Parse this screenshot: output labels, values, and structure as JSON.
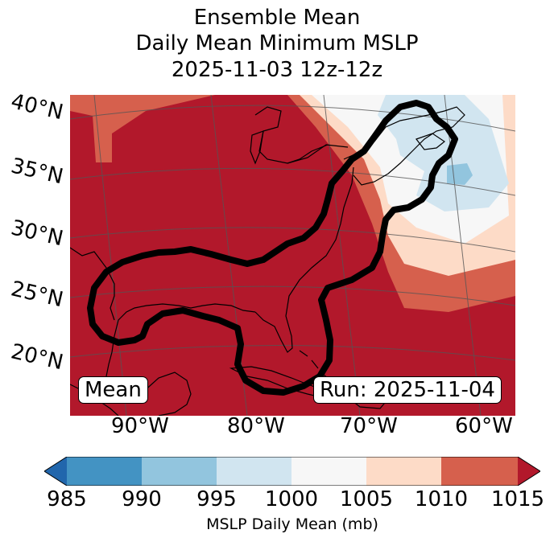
{
  "title": {
    "line1": "Ensemble Mean",
    "line2": "Daily Mean Minimum MSLP",
    "line3": "2025-11-03 12z-12z"
  },
  "axes": {
    "lat_labels": [
      "40°N",
      "35°N",
      "30°N",
      "25°N",
      "20°N"
    ],
    "lon_labels": [
      "90°W",
      "80°W",
      "70°W",
      "60°W"
    ]
  },
  "annotations": {
    "mean_label": "Mean",
    "run_label": "Run: 2025-11-04"
  },
  "colorbar": {
    "label": "MSLP Daily Mean (mb)",
    "ticks": [
      "985",
      "990",
      "995",
      "1000",
      "1005",
      "1010",
      "1015"
    ],
    "colors": [
      "#2166ac",
      "#4393c3",
      "#92c5de",
      "#d1e5f0",
      "#f7f7f7",
      "#fddbc7",
      "#d6604d",
      "#b2182b"
    ]
  },
  "colors": {
    "contour": "#000000",
    "coast": "#000000",
    "grid": "#555555"
  }
}
